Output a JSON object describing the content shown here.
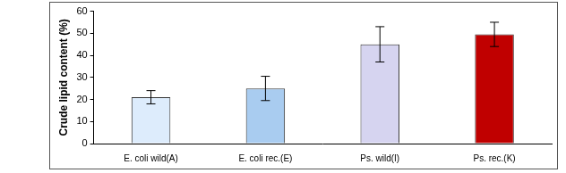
{
  "chart_data": {
    "type": "bar",
    "y_label": "Crude lipid content (%)",
    "categories": [
      "E. coli wild(A)",
      "E. coli rec.(E)",
      "Ps. wild(I)",
      "Ps. rec.(K)"
    ],
    "values": [
      21,
      25,
      45,
      49.5
    ],
    "errors": [
      3,
      5.5,
      8,
      5.5
    ],
    "colors": [
      "#ddecfc",
      "#a9ccf0",
      "#d6d4f0",
      "#c00000"
    ],
    "ylim": [
      0,
      60
    ],
    "yticks": [
      0,
      10,
      20,
      30,
      40,
      50,
      60
    ],
    "grid": false
  }
}
